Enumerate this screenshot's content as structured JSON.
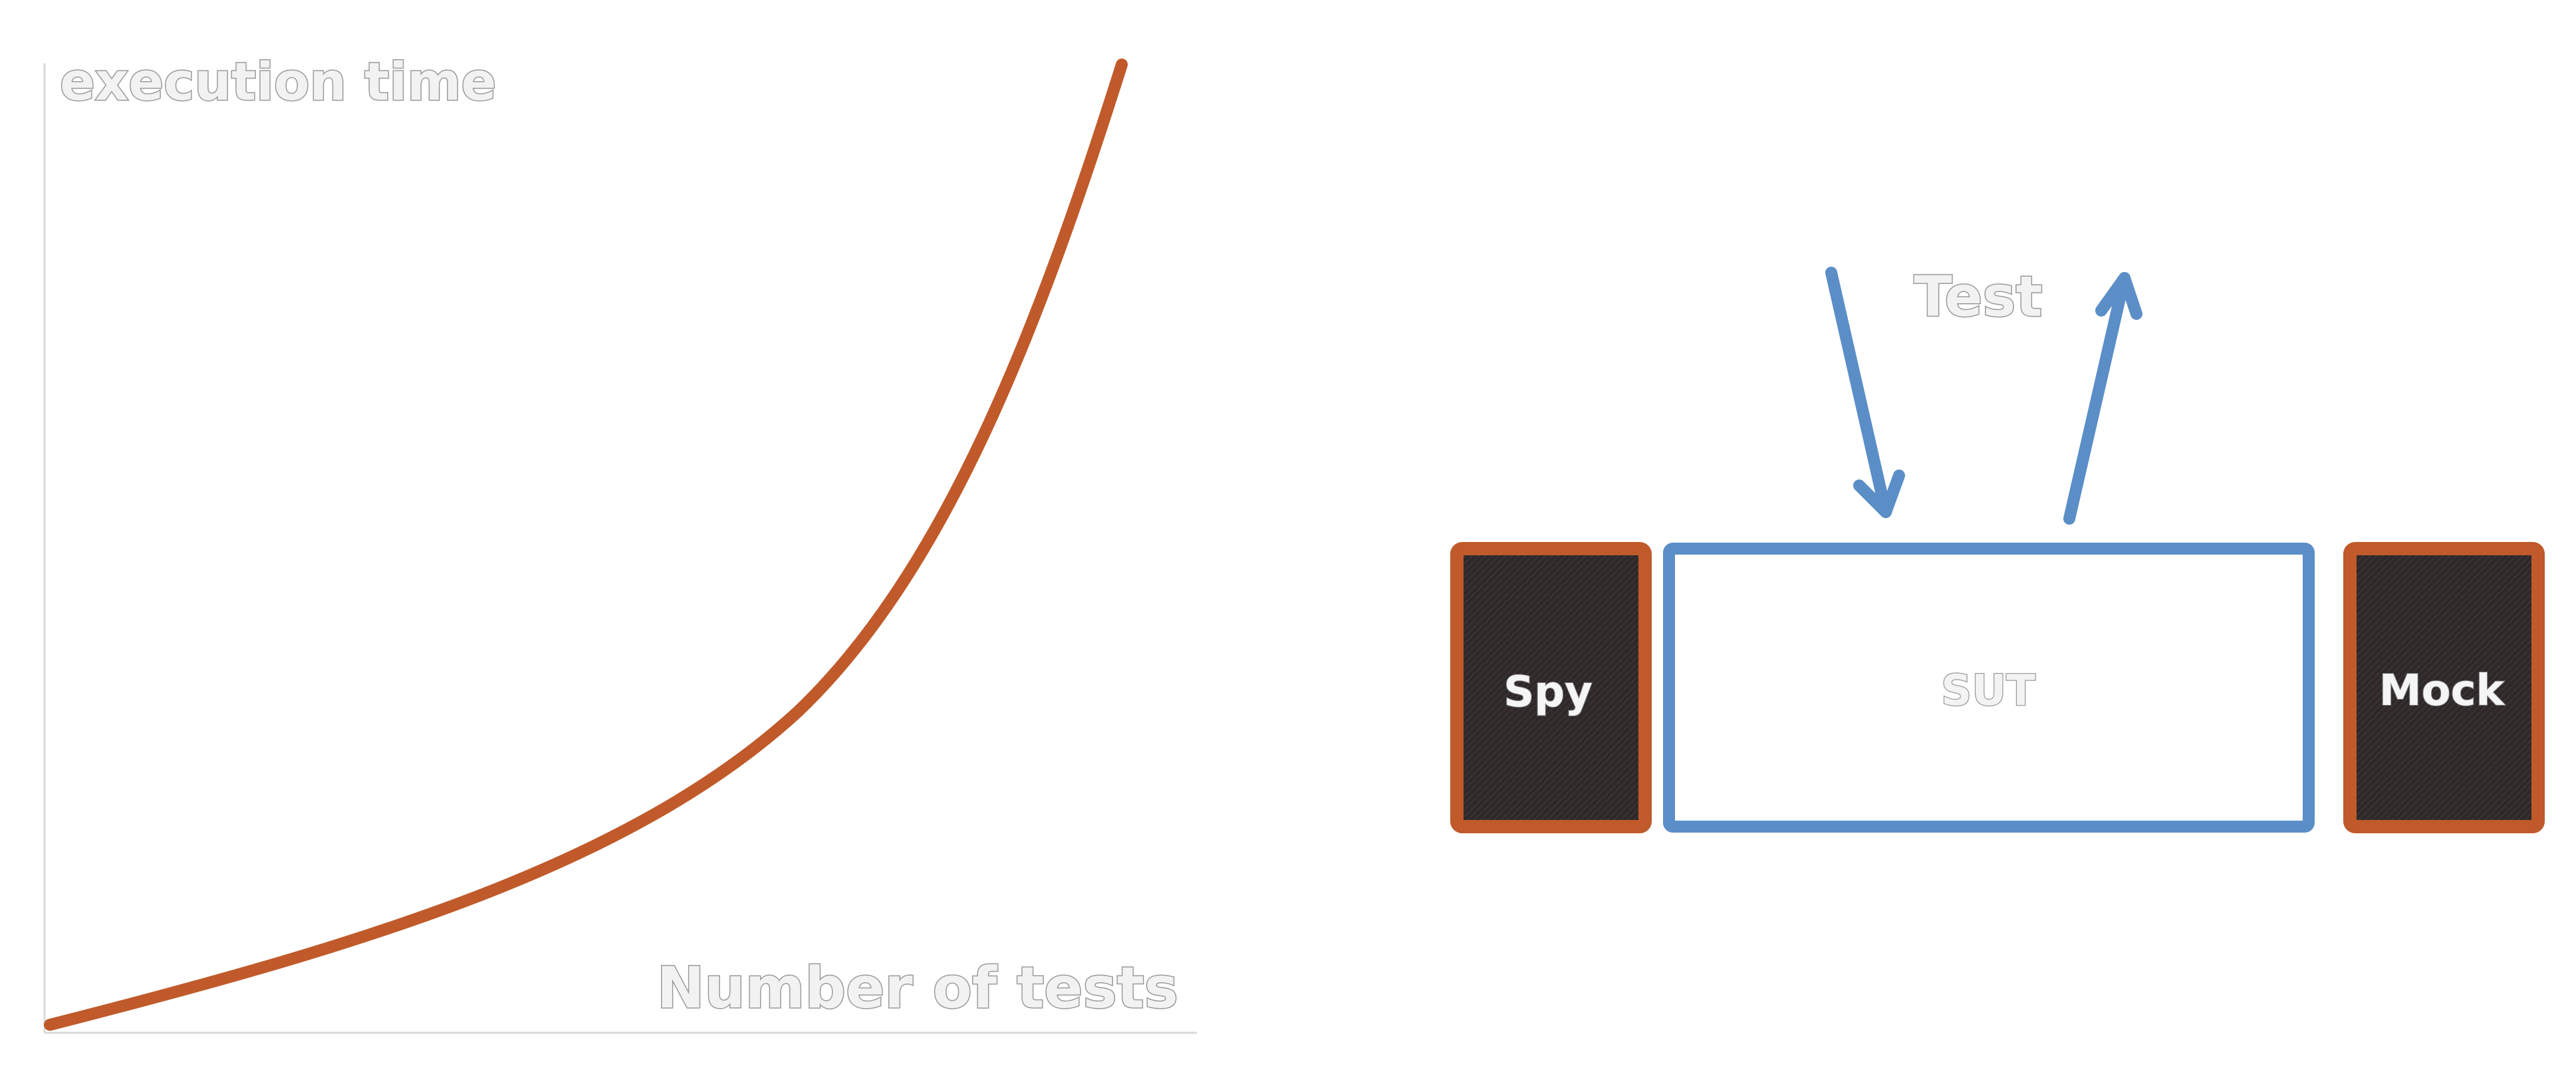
{
  "graph": {
    "ylabel": "execution time",
    "xlabel": "Number of tests",
    "curve_color": "#c05a2b",
    "axis_color": "#d8d8d8"
  },
  "diagram": {
    "test_label": "Test",
    "sut_label": "SUT",
    "spy_label": "Spy",
    "mock_label": "Mock",
    "arrow_color": "#5b8ec7",
    "double_border_color": "#c05a2b",
    "double_fill_color": "#2e2829",
    "sut_border_color": "#5b8ec7"
  }
}
